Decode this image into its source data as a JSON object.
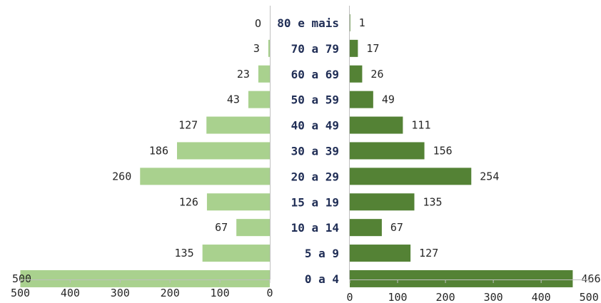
{
  "chart_data": {
    "type": "bar",
    "orientation": "horizontal",
    "layout": "population-pyramid",
    "categories": [
      "80 e mais",
      "70 a 79",
      "60 a 69",
      "50 a 59",
      "40 a 49",
      "30 a 39",
      "20 a 29",
      "15 a 19",
      "10 a 14",
      "5 a 9",
      "0 a 4"
    ],
    "series": [
      {
        "side": "left",
        "color": "#a9d18e",
        "values": [
          0,
          3,
          23,
          43,
          127,
          186,
          260,
          126,
          67,
          135,
          500
        ],
        "labels": [
          "O",
          "3",
          "23",
          "43",
          "127",
          "186",
          "260",
          "126",
          "67",
          "135",
          "500"
        ]
      },
      {
        "side": "right",
        "color": "#548235",
        "values": [
          1,
          17,
          26,
          49,
          111,
          156,
          254,
          135,
          67,
          127,
          466
        ],
        "labels": [
          "1",
          "17",
          "26",
          "49",
          "111",
          "156",
          "254",
          "135",
          "67",
          "127",
          "466"
        ]
      }
    ],
    "left_axis": {
      "xlim": [
        500,
        0
      ],
      "ticks": [
        "500",
        "400",
        "300",
        "200",
        "100",
        "0"
      ]
    },
    "right_axis": {
      "xlim": [
        0,
        500
      ],
      "ticks": [
        "0",
        "100",
        "200",
        "300",
        "400",
        "500"
      ]
    },
    "grid": false,
    "legend": "none",
    "title": "",
    "xlabel": "",
    "ylabel": ""
  }
}
